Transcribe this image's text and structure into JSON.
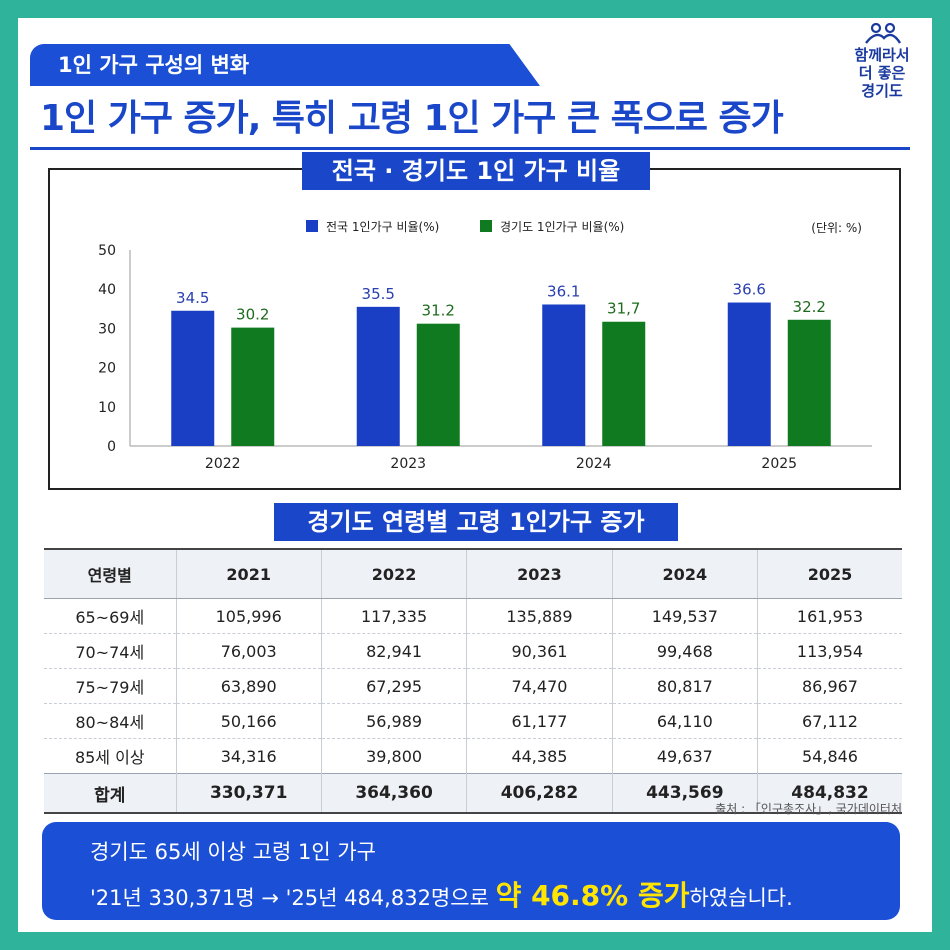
{
  "tag": "1인 가구 구성의 변화",
  "headline": "1인 가구 증가, 특히 고령 1인 가구 큰 폭으로 증가",
  "logo": {
    "line1": "함께라서",
    "line2": "더 좋은",
    "line3": "경기도"
  },
  "chart_title": "전국 · 경기도 1인 가구 비율",
  "chart_data": {
    "type": "bar",
    "categories": [
      "2022",
      "2023",
      "2024",
      "2025"
    ],
    "series": [
      {
        "name": "전국 1인가구 비율(%)",
        "values": [
          34.5,
          35.5,
          36.1,
          36.6
        ],
        "labels": [
          "34.5",
          "35.5",
          "36.1",
          "36.6"
        ],
        "color": "#1a3fc4",
        "label_color": "#2a3fb0"
      },
      {
        "name": "경기도 1인가구 비율(%)",
        "values": [
          30.2,
          31.2,
          31.7,
          32.2
        ],
        "labels": [
          "30.2",
          "31.2",
          "31,7",
          "32.2"
        ],
        "color": "#0f7a1f",
        "label_color": "#1e6b1e"
      }
    ],
    "unit": "(단위: %)",
    "ylim": [
      0,
      50
    ],
    "yticks": [
      0,
      10,
      20,
      30,
      40,
      50
    ],
    "legend": "top",
    "grid": false
  },
  "table_title": "경기도 연령별 고령 1인가구 증가",
  "table": {
    "headers": [
      "연령별",
      "2021",
      "2022",
      "2023",
      "2024",
      "2025"
    ],
    "rows": [
      [
        "65~69세",
        "105,996",
        "117,335",
        "135,889",
        "149,537",
        "161,953"
      ],
      [
        "70~74세",
        "76,003",
        "82,941",
        "90,361",
        "99,468",
        "113,954"
      ],
      [
        "75~79세",
        "63,890",
        "67,295",
        "74,470",
        "80,817",
        "86,967"
      ],
      [
        "80~84세",
        "50,166",
        "56,989",
        "61,177",
        "64,110",
        "67,112"
      ],
      [
        "85세 이상",
        "34,316",
        "39,800",
        "44,385",
        "49,637",
        "54,846"
      ]
    ],
    "total": [
      "합계",
      "330,371",
      "364,360",
      "406,282",
      "443,569",
      "484,832"
    ]
  },
  "source": "출처 : 「인구총조사」, 국가데이터처",
  "summary": {
    "line1": "경기도 65세 이상 고령 1인 가구",
    "line2_pre": "'21년 330,371명 → '25년 484,832명으로 ",
    "highlight": "약 46.8% 증가",
    "line2_post": "하였습니다."
  }
}
